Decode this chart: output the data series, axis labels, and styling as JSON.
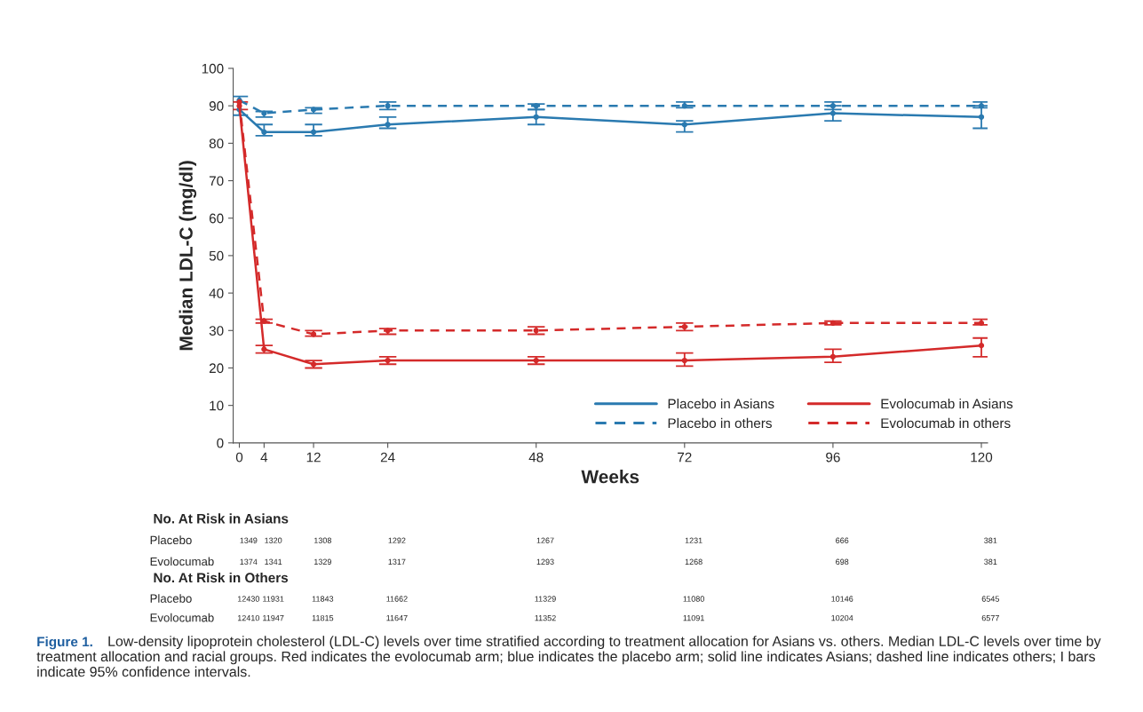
{
  "chart_data": {
    "type": "line",
    "xlabel": "Weeks",
    "ylabel": "Median LDL-C (mg/dl)",
    "x": [
      0,
      4,
      12,
      24,
      48,
      72,
      96,
      120
    ],
    "xlim": [
      -1,
      121
    ],
    "xticks": [
      0,
      4,
      12,
      24,
      48,
      72,
      96,
      120
    ],
    "ylim": [
      0,
      100
    ],
    "yticks": [
      0,
      10,
      20,
      30,
      40,
      50,
      60,
      70,
      80,
      90,
      100
    ],
    "series": [
      {
        "name": "Placebo in Asians",
        "color": "#2a7ab0",
        "line_style": "solid",
        "values": [
          89,
          83,
          83,
          85,
          87,
          85,
          88,
          87
        ],
        "errors": [
          [
            87.5,
            92.5
          ],
          [
            82,
            85
          ],
          [
            82,
            85
          ],
          [
            84,
            87
          ],
          [
            85,
            89
          ],
          [
            83,
            86
          ],
          [
            86,
            90
          ],
          [
            84,
            90
          ]
        ]
      },
      {
        "name": "Placebo in others",
        "color": "#2a7ab0",
        "line_style": "dashed",
        "values": [
          91.5,
          88,
          89,
          90,
          90,
          90,
          90,
          90
        ],
        "errors": [
          null,
          [
            87,
            88.5
          ],
          [
            88,
            89.5
          ],
          [
            89,
            91
          ],
          [
            89,
            90.5
          ],
          [
            89.5,
            91
          ],
          [
            89,
            91
          ],
          [
            89.5,
            91
          ]
        ]
      },
      {
        "name": "Evolocumab in Asians",
        "color": "#d42a2a",
        "line_style": "solid",
        "values": [
          90,
          25,
          21,
          22,
          22,
          22,
          23,
          26
        ],
        "errors": [
          [
            89,
            91
          ],
          [
            24,
            26
          ],
          [
            20,
            22
          ],
          [
            21,
            23
          ],
          [
            21,
            23
          ],
          [
            20.5,
            24
          ],
          [
            21.5,
            25
          ],
          [
            23,
            28
          ]
        ]
      },
      {
        "name": "Evolocumab in others",
        "color": "#d42a2a",
        "line_style": "dashed",
        "values": [
          91,
          32.5,
          29,
          30,
          30,
          31,
          32,
          32
        ],
        "errors": [
          null,
          [
            32,
            33
          ],
          [
            28.5,
            30
          ],
          [
            29,
            30.5
          ],
          [
            29,
            31
          ],
          [
            30,
            32
          ],
          [
            31.5,
            32.5
          ],
          [
            31.5,
            33
          ]
        ]
      }
    ],
    "marker": "circle",
    "legend": "bottom right",
    "grid": false,
    "annotations": [
      "No. At Risk in Asians",
      "Placebo",
      "1349",
      "1320",
      "1308",
      "1292",
      "1267",
      "1231",
      "666",
      "381",
      "Evolocumab",
      "1374",
      "1341",
      "1329",
      "1317",
      "1293",
      "1268",
      "698",
      "381",
      "No. At Risk in Others",
      "Placebo",
      "12430",
      "11931",
      "11843",
      "11662",
      "11329",
      "11080",
      "10146",
      "6545",
      "Evolocumab",
      "12410",
      "11947",
      "11815",
      "11647",
      "11352",
      "11091",
      "10204",
      "6577",
      "Figure 1.",
      "Low-density lipoprotein cholesterol (LDL-C) levels over time stratified according to treatment allocation for Asians vs. others. Median LDL-C levels over time by treatment allocation and racial groups. Red indicates the evolocumab arm; blue indicates the placebo arm; solid line indicates Asians; dashed line indicates others; I bars indicate 95% confidence intervals."
    ]
  }
}
